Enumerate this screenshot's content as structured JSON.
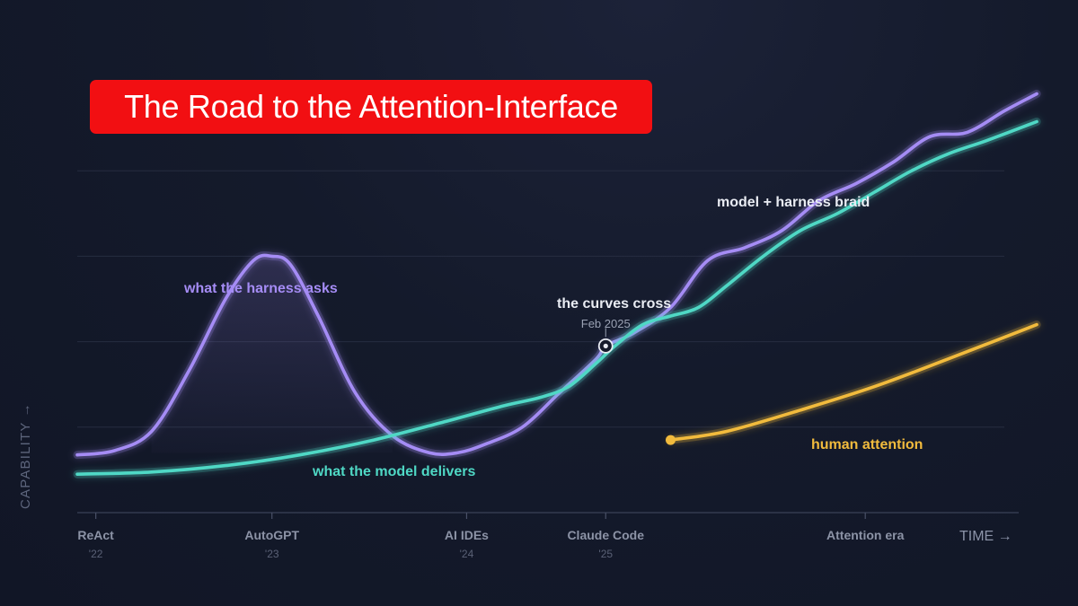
{
  "chart_data": {
    "type": "line",
    "title": "The Road to the Attention-Interface",
    "ylabel": "CAPABILITY →",
    "xlabel": "TIME →",
    "xlim": [
      0,
      100
    ],
    "ylim": [
      0,
      100
    ],
    "grid": true,
    "ticks": [
      {
        "x": 2,
        "label": "ReAct",
        "sub": "'22"
      },
      {
        "x": 21,
        "label": "AutoGPT",
        "sub": "'23"
      },
      {
        "x": 42,
        "label": "AI IDEs",
        "sub": "'24"
      },
      {
        "x": 57,
        "label": "Claude Code",
        "sub": "'25"
      },
      {
        "x": 85,
        "label": "Attention era",
        "sub": ""
      }
    ],
    "series": [
      {
        "key": "harness",
        "name": "what the harness asks",
        "color": "#a58cf5",
        "points": [
          [
            0,
            13.5
          ],
          [
            4,
            14.5
          ],
          [
            8,
            19
          ],
          [
            12,
            33
          ],
          [
            16,
            50
          ],
          [
            19,
            59
          ],
          [
            21,
            60
          ],
          [
            23,
            58
          ],
          [
            26,
            46
          ],
          [
            30,
            28
          ],
          [
            34,
            18
          ],
          [
            38,
            14
          ],
          [
            41,
            14
          ],
          [
            44,
            16
          ],
          [
            48,
            20
          ],
          [
            52,
            28
          ],
          [
            56,
            36
          ],
          [
            57,
            39
          ],
          [
            60,
            42
          ],
          [
            64,
            48
          ],
          [
            68,
            59
          ],
          [
            72,
            62
          ],
          [
            76,
            66
          ],
          [
            80,
            73
          ],
          [
            84,
            77
          ],
          [
            88,
            82
          ],
          [
            92,
            88
          ],
          [
            96,
            89
          ],
          [
            100,
            94
          ],
          [
            103.5,
            98
          ]
        ]
      },
      {
        "key": "model",
        "name": "what the model delivers",
        "color": "#4fd8c5",
        "points": [
          [
            0,
            9
          ],
          [
            8,
            9.5
          ],
          [
            16,
            11
          ],
          [
            24,
            13.5
          ],
          [
            32,
            17
          ],
          [
            40,
            21.5
          ],
          [
            46,
            25
          ],
          [
            50,
            27
          ],
          [
            53,
            29.5
          ],
          [
            56,
            35
          ],
          [
            58,
            39
          ],
          [
            61,
            44
          ],
          [
            64,
            46
          ],
          [
            67,
            48
          ],
          [
            70,
            53
          ],
          [
            74,
            60
          ],
          [
            78,
            66
          ],
          [
            82,
            70
          ],
          [
            86,
            75
          ],
          [
            90,
            80
          ],
          [
            94,
            84
          ],
          [
            98,
            87
          ],
          [
            103.5,
            91.5
          ]
        ]
      },
      {
        "key": "attention",
        "name": "human attention",
        "color": "#f2bb3d",
        "points": [
          [
            64,
            17
          ],
          [
            70,
            19
          ],
          [
            78,
            24
          ],
          [
            86,
            29.5
          ],
          [
            94,
            36
          ],
          [
            103.5,
            44
          ]
        ]
      }
    ],
    "annotations": {
      "harness_label": "what the harness asks",
      "model_label": "what the model delivers",
      "attention_label": "human attention",
      "braid_label": "model + harness braid",
      "cross_label": "the curves cross",
      "cross_date": "Feb 2025",
      "cross_x": 57,
      "cross_y": 39
    },
    "colors": {
      "harness": "#a58cf5",
      "model": "#4fd8c5",
      "attention": "#f2bb3d",
      "title_bg": "#f20f12"
    }
  }
}
